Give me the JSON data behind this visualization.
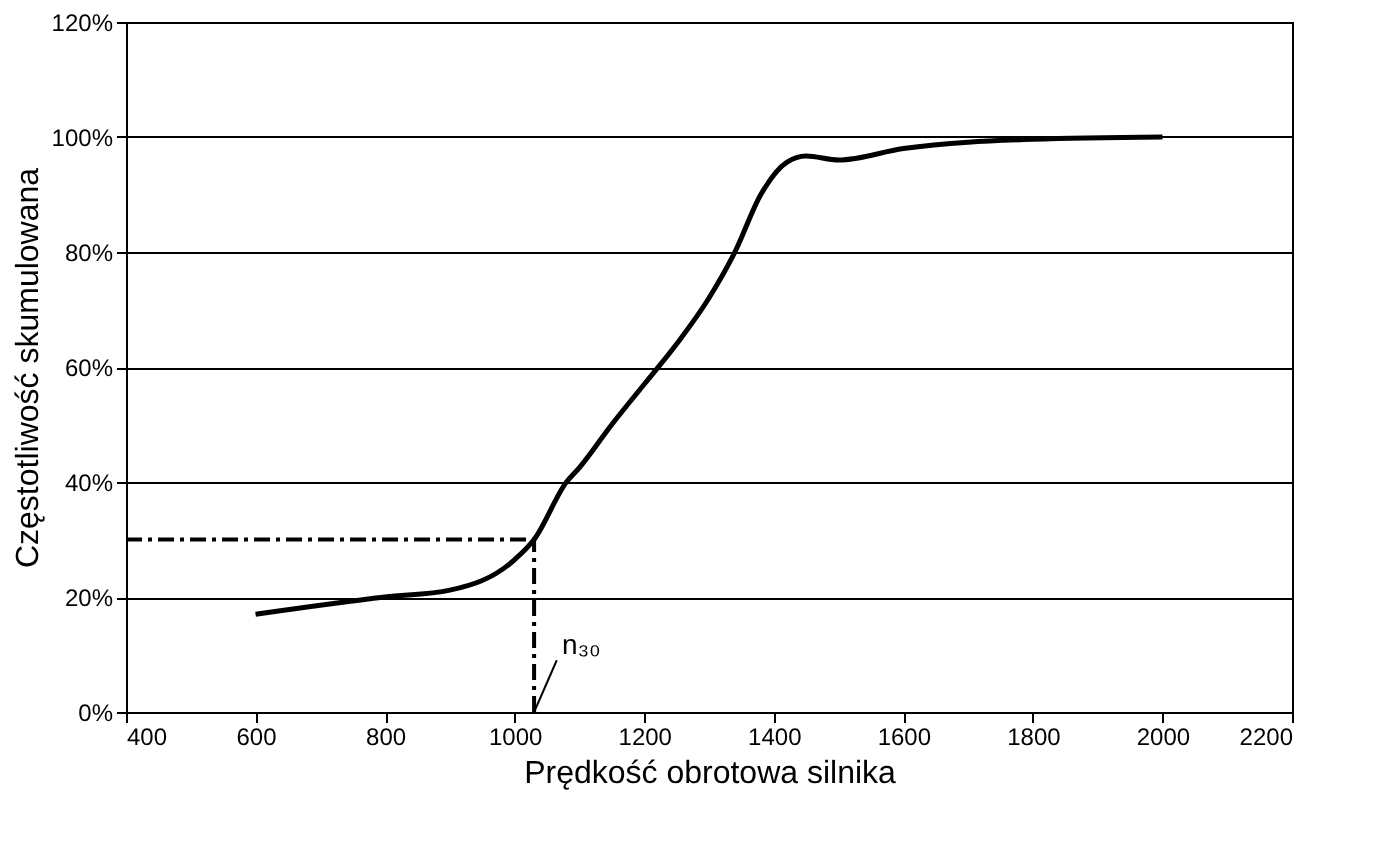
{
  "chart_data": {
    "type": "line",
    "xlabel": "Prędkość obrotowa silnika",
    "ylabel": "Częstotliwość skumulowana",
    "x": [
      600,
      800,
      900,
      1000,
      1030,
      1080,
      1100,
      1150,
      1200,
      1250,
      1300,
      1340,
      1380,
      1420,
      1450,
      1500,
      1600,
      1800,
      2000
    ],
    "series": [
      {
        "color": "#000000",
        "values": [
          17,
          20,
          21.2,
          26.5,
          30,
          40,
          42.5,
          50,
          57,
          64,
          72,
          80,
          90,
          95.6,
          96.7,
          96,
          98,
          99.6,
          100
        ]
      }
    ],
    "xlim": [
      400,
      2200
    ],
    "xticks": [
      400,
      600,
      800,
      1000,
      1200,
      1400,
      1600,
      1800,
      2000,
      2200
    ],
    "ylim": [
      0,
      120
    ],
    "yticks": [
      {
        "value": 0,
        "label": "0%"
      },
      {
        "value": 20,
        "label": "20%"
      },
      {
        "value": 40,
        "label": "40%"
      },
      {
        "value": 60,
        "label": "60%"
      },
      {
        "value": 80,
        "label": "80%"
      },
      {
        "value": 100,
        "label": "100%"
      },
      {
        "value": 120,
        "label": "120%"
      }
    ],
    "grid": "y",
    "marker": "none",
    "line_style": "solid",
    "ref_lines": [
      {
        "axis": "x",
        "value": 1030,
        "line_style": "dashdot",
        "color": "#000000"
      },
      {
        "axis": "y",
        "value": 30,
        "line_style": "dashdot",
        "color": "#000000"
      }
    ],
    "annotations": [
      {
        "text": "n₃₀",
        "x": 1030,
        "y": 0
      }
    ]
  }
}
